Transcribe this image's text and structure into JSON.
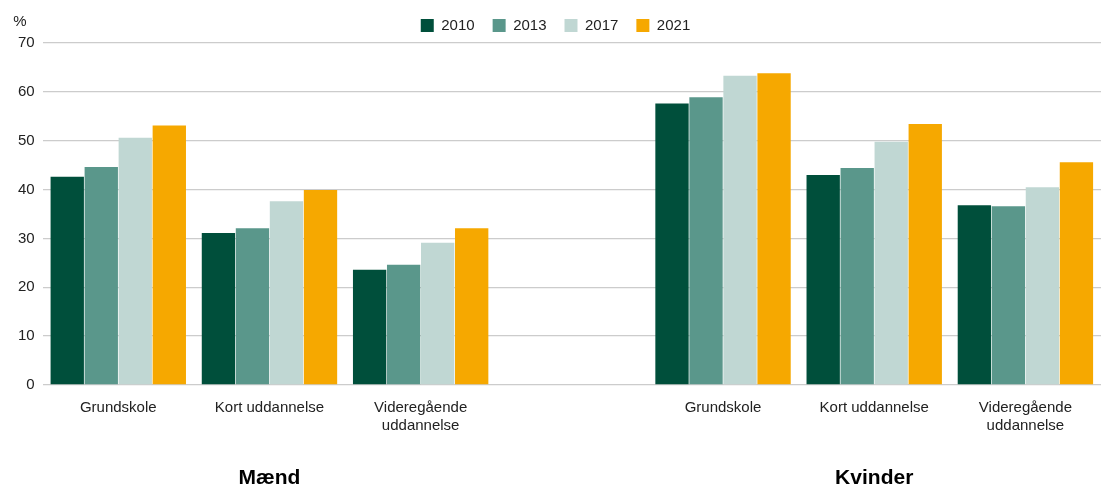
{
  "chart_data": {
    "type": "bar",
    "ylabel": "%",
    "categories": [
      "Grundskole",
      "Kort uddannelse",
      "Videregående uddannelse",
      null,
      "Grundskole",
      "Kort uddannelse",
      "Videregående uddannelse"
    ],
    "series": [
      {
        "name": "2010",
        "color": "#004f3b",
        "values": [
          42.6,
          31.1,
          23.6,
          null,
          57.6,
          43.0,
          36.8
        ]
      },
      {
        "name": "2013",
        "color": "#5a978b",
        "values": [
          44.6,
          32.1,
          24.6,
          null,
          58.9,
          44.4,
          36.6
        ]
      },
      {
        "name": "2017",
        "color": "#c0d7d3",
        "values": [
          50.6,
          37.6,
          29.1,
          null,
          63.3,
          49.8,
          40.5
        ]
      },
      {
        "name": "2021",
        "color": "#f6a800",
        "values": [
          53.1,
          39.9,
          32.1,
          null,
          63.8,
          53.4,
          45.6
        ]
      }
    ],
    "annotations": [
      "Mænd",
      "Kvinder"
    ],
    "ylim": [
      0,
      70
    ],
    "yticks": [
      0,
      10,
      20,
      30,
      40,
      50,
      60,
      70
    ],
    "grid": "y",
    "legend": "top"
  }
}
